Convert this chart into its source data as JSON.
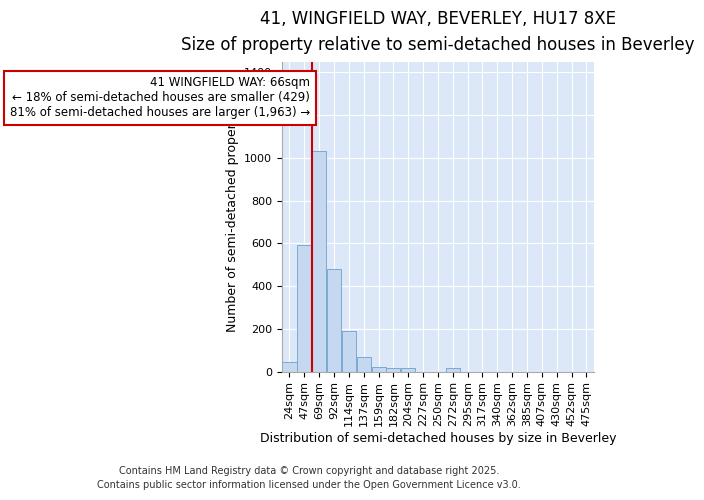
{
  "title_line1": "41, WINGFIELD WAY, BEVERLEY, HU17 8XE",
  "title_line2": "Size of property relative to semi-detached houses in Beverley",
  "xlabel": "Distribution of semi-detached houses by size in Beverley",
  "ylabel": "Number of semi-detached properties",
  "categories": [
    "24sqm",
    "47sqm",
    "69sqm",
    "92sqm",
    "114sqm",
    "137sqm",
    "159sqm",
    "182sqm",
    "204sqm",
    "227sqm",
    "250sqm",
    "272sqm",
    "295sqm",
    "317sqm",
    "340sqm",
    "362sqm",
    "385sqm",
    "407sqm",
    "430sqm",
    "452sqm",
    "475sqm"
  ],
  "values": [
    45,
    590,
    1030,
    480,
    190,
    70,
    20,
    15,
    15,
    0,
    0,
    15,
    0,
    0,
    0,
    0,
    0,
    0,
    0,
    0,
    0
  ],
  "bar_color": "#c5d8f0",
  "bar_edge_color": "#7aaad0",
  "red_line_x": 1.5,
  "annotation_title": "41 WINGFIELD WAY: 66sqm",
  "annotation_line2": "← 18% of semi-detached houses are smaller (429)",
  "annotation_line3": "81% of semi-detached houses are larger (1,963) →",
  "annotation_box_color": "#ffffff",
  "annotation_box_edgecolor": "#cc0000",
  "vline_color": "#cc0000",
  "footer_line1": "Contains HM Land Registry data © Crown copyright and database right 2025.",
  "footer_line2": "Contains public sector information licensed under the Open Government Licence v3.0.",
  "ylim": [
    0,
    1450
  ],
  "fig_bg_color": "#ffffff",
  "ax_bg_color": "#dce8f8",
  "grid_color": "#ffffff",
  "title_fontsize": 12,
  "subtitle_fontsize": 10,
  "tick_fontsize": 8,
  "ylabel_fontsize": 9,
  "xlabel_fontsize": 9,
  "footer_fontsize": 7,
  "annot_fontsize": 8.5
}
